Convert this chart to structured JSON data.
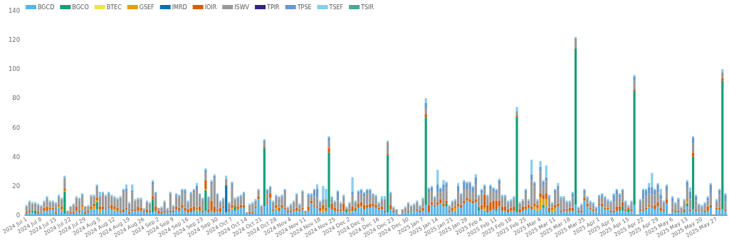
{
  "chart_data": {
    "type": "bar",
    "stacked": true,
    "legend": "top left",
    "grid": false,
    "ylim": [
      0,
      140
    ],
    "yticks": [
      0,
      20,
      40,
      60,
      80,
      100,
      120,
      140
    ],
    "categories": [
      "2024 Jul 1",
      null,
      null,
      null,
      null,
      "2024 Jul 8",
      null,
      null,
      null,
      null,
      "2024 Jul 15",
      null,
      null,
      null,
      null,
      "2024 Jul 22",
      null,
      null,
      null,
      null,
      "2024 Jul 29",
      null,
      null,
      null,
      null,
      "2024 Aug 5",
      null,
      null,
      null,
      null,
      "2024 Aug 12",
      null,
      null,
      null,
      null,
      "2024 Aug 19",
      null,
      null,
      null,
      null,
      "2024 Aug 26",
      null,
      null,
      null,
      null,
      "2024 Sep 2",
      null,
      null,
      null,
      null,
      "2024 Sep 9",
      null,
      null,
      null,
      null,
      "2024 Sep 16",
      null,
      null,
      null,
      null,
      "2024 Sep 23",
      null,
      null,
      null,
      null,
      "2024 Sep 30",
      null,
      null,
      null,
      null,
      "2024 Oct 7",
      null,
      null,
      null,
      null,
      "2024 Oct 14",
      null,
      null,
      null,
      null,
      "2024 Oct 21",
      null,
      null,
      null,
      null,
      "2024 Oct 28",
      null,
      null,
      null,
      null,
      "2024 Nov 4",
      null,
      null,
      null,
      null,
      "2024 Nov 11",
      null,
      null,
      null,
      null,
      "2024 Nov 18",
      null,
      null,
      null,
      null,
      "2024 Nov 25",
      null,
      null,
      null,
      null,
      "2024 Dec 2",
      null,
      null,
      null,
      null,
      "2024 Dec 9",
      null,
      null,
      null,
      null,
      "2024 Dec 16",
      null,
      null,
      null,
      null,
      "2024 Dec 23",
      null,
      null,
      null,
      null,
      "2024 Dec 30",
      null,
      null,
      null,
      null,
      "2025 Jan 7",
      null,
      null,
      null,
      null,
      "2025 Jan 14",
      null,
      null,
      null,
      null,
      "2025 Jan 21",
      null,
      null,
      null,
      null,
      "2025 Jan 28",
      null,
      null,
      null,
      null,
      "2025 Feb 4",
      null,
      null,
      null,
      null,
      "2025 Feb 11",
      null,
      null,
      null,
      null,
      "2025 Feb 18",
      null,
      null,
      null,
      null,
      "2025 Feb 25",
      null,
      null,
      null,
      null,
      "2025 Mar 4",
      null,
      null,
      null,
      null,
      "2025 Mar 11",
      null,
      null,
      null,
      null,
      "2025 Mar 18",
      null,
      null,
      null,
      null,
      "2025 Mar 25",
      null,
      null,
      null,
      null,
      "2025 Apr 1",
      null,
      null,
      null,
      null,
      "2025 Apr 8",
      null,
      null,
      null,
      null,
      "2025 Apr 15",
      null,
      null,
      null,
      null,
      "2025 Apr 22",
      null,
      null,
      null,
      null,
      "2025 Apr 29",
      null,
      null,
      null,
      null,
      "2025 May 6",
      null,
      null,
      null,
      null,
      "2025 May 13",
      null,
      null,
      null,
      null,
      "2025 May 20",
      null,
      null,
      null,
      null,
      "2025 May 27",
      null,
      null,
      null
    ],
    "series": [
      {
        "name": "BGCD",
        "color": "#56b4e9",
        "values": [
          1,
          2,
          2,
          1,
          1,
          1,
          3,
          3,
          4,
          4,
          1,
          5,
          3,
          1,
          1,
          1,
          1,
          3,
          2,
          4,
          1,
          2,
          4,
          4,
          4,
          2,
          4,
          3,
          5,
          4,
          3,
          3,
          2,
          2,
          4,
          1,
          3,
          3,
          3,
          3,
          1,
          2,
          2,
          2,
          3,
          1,
          1,
          2,
          1,
          2,
          2,
          4,
          3,
          5,
          3,
          2,
          2,
          3,
          3,
          3,
          2,
          3,
          2,
          3,
          2,
          3,
          2,
          5,
          2,
          3,
          4,
          3,
          4,
          5,
          5,
          1,
          1,
          1,
          5,
          11,
          1,
          6,
          8,
          11,
          3,
          4,
          3,
          5,
          4,
          2,
          2,
          3,
          3,
          3,
          4,
          1,
          3,
          8,
          6,
          5,
          2,
          2,
          3,
          5,
          4,
          3,
          3,
          3,
          3,
          2,
          2,
          3,
          3,
          5,
          5,
          4,
          5,
          5,
          6,
          5,
          4,
          4,
          2,
          2,
          4,
          2,
          1,
          0,
          1,
          2,
          2,
          2,
          2,
          3,
          2,
          3,
          7,
          2,
          7,
          6,
          7,
          8,
          6,
          6,
          2,
          3,
          3,
          6,
          5,
          8,
          10,
          9,
          8,
          9,
          3,
          4,
          3,
          2,
          3,
          4,
          3,
          6,
          3,
          3,
          2,
          3,
          3,
          2,
          2,
          3,
          4,
          5,
          4,
          4,
          3,
          4,
          5,
          6,
          2,
          2,
          3,
          6,
          2,
          3,
          3,
          3,
          3,
          7,
          2,
          2,
          10,
          6,
          4,
          3,
          2,
          7,
          6,
          4,
          4,
          2,
          2,
          3,
          3,
          3,
          3,
          2,
          3,
          7,
          0,
          3,
          3,
          4,
          5,
          5,
          4,
          6,
          3,
          3,
          8,
          1,
          3,
          2,
          2,
          1,
          2,
          6,
          3,
          4,
          3,
          2,
          2,
          2,
          3,
          5,
          0,
          4,
          4,
          4,
          3
        ]
      },
      {
        "name": "BGCO",
        "color": "#169f77",
        "values": [
          0,
          0,
          1,
          2,
          0,
          0,
          0,
          0,
          0,
          0,
          0,
          0,
          0,
          15,
          0,
          0,
          0,
          0,
          0,
          0,
          0,
          0,
          0,
          0,
          5,
          0,
          0,
          0,
          0,
          0,
          0,
          0,
          0,
          0,
          0,
          0,
          0,
          0,
          0,
          0,
          0,
          0,
          0,
          9,
          0,
          0,
          0,
          0,
          0,
          0,
          0,
          0,
          0,
          0,
          0,
          0,
          0,
          1,
          0,
          0,
          0,
          14,
          0,
          0,
          0,
          0,
          0,
          0,
          0,
          0,
          0,
          3,
          0,
          0,
          0,
          0,
          0,
          0,
          0,
          0,
          0,
          40,
          0,
          0,
          0,
          0,
          0,
          0,
          0,
          0,
          0,
          0,
          0,
          0,
          0,
          0,
          0,
          0,
          0,
          0,
          0,
          0,
          0,
          38,
          0,
          0,
          0,
          0,
          0,
          2,
          0,
          0,
          1,
          0,
          0,
          0,
          0,
          0,
          0,
          0,
          0,
          0,
          0,
          39,
          0,
          0,
          0,
          0,
          0,
          0,
          0,
          0,
          0,
          0,
          1,
          0,
          60,
          0,
          0,
          0,
          0,
          0,
          0,
          2,
          0,
          0,
          0,
          0,
          0,
          0,
          0,
          0,
          0,
          0,
          2,
          0,
          0,
          1,
          0,
          0,
          1,
          0,
          0,
          0,
          0,
          0,
          0,
          65,
          0,
          0,
          0,
          0,
          0,
          0,
          0,
          0,
          2,
          0,
          1,
          0,
          0,
          0,
          0,
          0,
          0,
          0,
          0,
          107,
          0,
          0,
          0,
          0,
          0,
          0,
          0,
          0,
          0,
          0,
          0,
          0,
          0,
          0,
          1,
          3,
          0,
          2,
          0,
          78,
          0,
          0,
          0,
          0,
          0,
          0,
          0,
          0,
          0,
          0,
          0,
          0,
          0,
          0,
          0,
          0,
          1,
          2,
          0,
          36,
          0,
          0,
          0,
          0,
          0,
          0,
          0,
          0,
          0,
          88,
          0
        ]
      },
      {
        "name": "BTEC",
        "color": "#f0e442",
        "values": [
          0,
          0,
          0,
          0,
          0,
          0,
          0,
          0,
          0,
          0,
          0,
          0,
          0,
          0,
          0,
          0,
          0,
          0,
          0,
          0,
          0,
          0,
          0,
          0,
          0,
          0,
          0,
          0,
          0,
          0,
          0,
          0,
          0,
          0,
          0,
          0,
          0,
          0,
          0,
          0,
          0,
          0,
          0,
          0,
          0,
          0,
          0,
          0,
          0,
          0,
          0,
          0,
          0,
          0,
          0,
          0,
          0,
          0,
          0,
          0,
          0,
          0,
          0,
          0,
          0,
          0,
          0,
          0,
          0,
          0,
          0,
          0,
          0,
          0,
          0,
          0,
          0,
          0,
          0,
          0,
          0,
          0,
          0,
          0,
          0,
          0,
          0,
          0,
          0,
          0,
          0,
          0,
          0,
          0,
          0,
          0,
          0,
          0,
          0,
          0,
          0,
          0,
          0,
          0,
          0,
          0,
          0,
          0,
          0,
          0,
          0,
          0,
          0,
          0,
          0,
          0,
          0,
          0,
          0,
          0,
          0,
          0,
          0,
          0,
          0,
          0,
          0,
          0,
          0,
          0,
          0,
          0,
          0,
          0,
          0,
          0,
          0,
          0,
          0,
          0,
          0,
          0,
          0,
          0,
          0,
          0,
          0,
          0,
          0,
          0,
          0,
          0,
          0,
          0,
          0,
          0,
          0,
          0,
          0,
          0,
          0,
          0,
          0,
          0,
          0,
          0,
          0,
          0,
          0,
          0,
          0,
          0,
          0,
          0,
          0,
          0,
          0,
          0,
          0,
          0,
          0,
          0,
          0,
          0,
          0,
          0,
          0,
          0,
          0,
          0,
          0,
          0,
          0,
          0,
          0,
          0,
          0,
          0,
          0,
          0,
          0,
          0,
          0,
          0,
          0,
          0,
          0,
          0,
          0,
          0,
          0,
          0,
          0,
          0,
          0,
          0,
          0,
          0,
          0,
          0,
          0,
          0,
          0,
          0,
          0,
          0,
          0,
          0,
          0,
          0,
          0,
          0,
          0,
          0,
          0,
          0,
          0,
          0,
          0
        ]
      },
      {
        "name": "GSEF",
        "color": "#e69f00",
        "values": [
          0,
          0,
          0,
          0,
          0,
          0,
          0,
          0,
          0,
          0,
          0,
          1,
          1,
          1,
          0,
          0,
          0,
          0,
          0,
          2,
          0,
          0,
          0,
          2,
          1,
          2,
          0,
          0,
          0,
          0,
          1,
          0,
          0,
          0,
          0,
          0,
          0,
          0,
          0,
          0,
          0,
          0,
          0,
          0,
          0,
          0,
          0,
          0,
          0,
          0,
          0,
          0,
          0,
          0,
          0,
          0,
          0,
          0,
          1,
          0,
          0,
          1,
          0,
          0,
          0,
          0,
          0,
          0,
          0,
          0,
          1,
          0,
          0,
          0,
          0,
          0,
          0,
          0,
          0,
          0,
          0,
          0,
          0,
          1,
          0,
          1,
          0,
          0,
          0,
          0,
          0,
          0,
          0,
          0,
          0,
          0,
          0,
          0,
          0,
          0,
          1,
          2,
          0,
          0,
          0,
          0,
          0,
          0,
          0,
          0,
          1,
          0,
          0,
          0,
          1,
          0,
          0,
          0,
          0,
          0,
          0,
          0,
          0,
          0,
          0,
          0,
          0,
          0,
          0,
          0,
          0,
          0,
          0,
          0,
          0,
          0,
          0,
          0,
          0,
          0,
          0,
          0,
          0,
          0,
          0,
          0,
          2,
          0,
          0,
          0,
          0,
          0,
          0,
          0,
          0,
          0,
          2,
          0,
          0,
          0,
          0,
          0,
          0,
          0,
          0,
          0,
          0,
          0,
          0,
          0,
          0,
          0,
          0,
          2,
          2,
          8,
          4,
          5,
          0,
          2,
          2,
          0,
          0,
          0,
          0,
          0,
          0,
          0,
          0,
          0,
          0,
          0,
          0,
          0,
          0,
          0,
          0,
          0,
          0,
          0,
          0,
          0,
          0,
          0,
          0,
          0,
          0,
          0,
          0,
          0,
          0,
          0,
          1,
          0,
          0,
          0,
          0,
          0,
          0,
          0,
          0,
          0,
          0,
          0,
          0,
          2,
          0,
          0,
          0,
          0,
          0,
          0,
          0,
          0,
          0,
          0,
          0,
          0,
          0
        ]
      },
      {
        "name": "IMRD",
        "color": "#0072b2",
        "values": [
          0,
          0,
          0,
          0,
          0,
          0,
          0,
          0,
          0,
          0,
          0,
          0,
          0,
          0,
          0,
          0,
          0,
          0,
          0,
          0,
          0,
          0,
          0,
          0,
          0,
          0,
          0,
          0,
          0,
          0,
          0,
          0,
          0,
          0,
          0,
          0,
          0,
          0,
          0,
          0,
          0,
          0,
          0,
          0,
          0,
          0,
          0,
          0,
          0,
          0,
          0,
          0,
          0,
          0,
          0,
          0,
          0,
          0,
          0,
          0,
          0,
          0,
          0,
          0,
          0,
          0,
          0,
          0,
          18,
          0,
          0,
          0,
          0,
          0,
          0,
          0,
          0,
          0,
          0,
          0,
          0,
          0,
          0,
          0,
          0,
          0,
          0,
          0,
          0,
          0,
          0,
          0,
          0,
          0,
          0,
          0,
          0,
          0,
          0,
          0,
          0,
          0,
          0,
          0,
          0,
          0,
          0,
          0,
          0,
          0,
          0,
          0,
          0,
          0,
          0,
          0,
          0,
          0,
          0,
          0,
          0,
          0,
          0,
          0,
          0,
          0,
          0,
          0,
          0,
          0,
          0,
          0,
          0,
          0,
          0,
          0,
          0,
          0,
          0,
          0,
          0,
          0,
          0,
          0,
          0,
          0,
          0,
          0,
          0,
          0,
          0,
          0,
          0,
          0,
          0,
          0,
          0,
          0,
          0,
          0,
          0,
          0,
          0,
          0,
          0,
          0,
          0,
          0,
          0,
          0,
          0,
          0,
          0,
          0,
          0,
          0,
          0,
          0,
          0,
          0,
          0,
          0,
          0,
          0,
          0,
          0,
          0,
          0,
          0,
          0,
          0,
          0,
          0,
          0,
          0,
          0,
          0,
          0,
          0,
          0,
          0,
          0,
          0,
          0,
          0,
          0,
          0,
          0,
          0,
          0,
          0,
          0,
          0,
          0,
          0,
          0,
          0,
          0,
          0,
          0,
          0,
          0,
          0,
          0,
          0,
          0,
          0,
          0,
          0,
          0,
          0,
          0,
          0,
          0,
          0,
          0,
          0,
          0,
          0
        ]
      },
      {
        "name": "IOIR",
        "color": "#d55e00",
        "values": [
          1,
          1,
          0,
          0,
          1,
          0,
          2,
          3,
          1,
          1,
          1,
          1,
          2,
          1,
          0,
          1,
          1,
          3,
          1,
          1,
          1,
          1,
          2,
          2,
          2,
          2,
          2,
          0,
          1,
          3,
          2,
          2,
          1,
          2,
          1,
          1,
          1,
          1,
          3,
          2,
          0,
          2,
          1,
          2,
          3,
          2,
          1,
          1,
          0,
          1,
          1,
          2,
          2,
          2,
          2,
          2,
          3,
          2,
          1,
          3,
          1,
          6,
          2,
          7,
          4,
          1,
          3,
          1,
          1,
          1,
          2,
          1,
          2,
          2,
          2,
          0,
          1,
          1,
          1,
          2,
          0,
          1,
          1,
          3,
          1,
          2,
          2,
          2,
          1,
          1,
          1,
          1,
          2,
          1,
          1,
          0,
          3,
          2,
          1,
          1,
          2,
          3,
          2,
          3,
          4,
          2,
          1,
          1,
          5,
          0,
          1,
          3,
          1,
          3,
          3,
          3,
          2,
          3,
          2,
          2,
          1,
          2,
          1,
          1,
          3,
          1,
          0,
          0,
          0,
          0,
          1,
          0,
          0,
          1,
          0,
          2,
          2,
          5,
          2,
          1,
          2,
          3,
          2,
          2,
          1,
          2,
          1,
          2,
          2,
          2,
          2,
          2,
          2,
          2,
          1,
          3,
          9,
          4,
          6,
          6,
          6,
          4,
          3,
          3,
          2,
          2,
          3,
          1,
          2,
          3,
          2,
          2,
          2,
          2,
          2,
          3,
          3,
          4,
          2,
          1,
          2,
          2,
          1,
          1,
          1,
          2,
          2,
          1,
          1,
          1,
          2,
          2,
          1,
          1,
          0,
          1,
          2,
          1,
          1,
          1,
          1,
          3,
          2,
          3,
          1,
          1,
          1,
          1,
          0,
          1,
          1,
          1,
          1,
          1,
          3,
          3,
          2,
          1,
          3,
          0,
          1,
          1,
          1,
          0,
          1,
          1,
          1,
          3,
          1,
          0,
          0,
          1,
          3,
          2,
          0,
          1,
          1,
          2,
          1
        ]
      },
      {
        "name": "ISWV",
        "color": "#999999",
        "values": [
          4,
          6,
          5,
          5,
          5,
          5,
          4,
          5,
          4,
          4,
          6,
          5,
          5,
          7,
          2,
          4,
          5,
          6,
          7,
          6,
          4,
          3,
          7,
          5,
          7,
          7,
          8,
          10,
          8,
          6,
          6,
          6,
          9,
          12,
          12,
          6,
          12,
          6,
          5,
          6,
          3,
          5,
          5,
          8,
          8,
          2,
          3,
          6,
          3,
          12,
          3,
          7,
          7,
          9,
          10,
          4,
          9,
          10,
          13,
          7,
          7,
          5,
          7,
          11,
          19,
          9,
          3,
          4,
          4,
          4,
          13,
          4,
          5,
          5,
          7,
          1,
          5,
          6,
          4,
          4,
          5,
          3,
          6,
          3,
          5,
          6,
          6,
          5,
          11,
          2,
          4,
          5,
          8,
          3,
          10,
          2,
          6,
          3,
          6,
          6,
          3,
          4,
          6,
          5,
          3,
          4,
          6,
          4,
          4,
          1,
          4,
          8,
          4,
          6,
          6,
          6,
          8,
          7,
          5,
          5,
          3,
          4,
          8,
          8,
          7,
          2,
          3,
          0,
          3,
          3,
          5,
          4,
          5,
          5,
          3,
          5,
          4,
          9,
          7,
          4,
          7,
          5,
          8,
          9,
          3,
          4,
          4,
          8,
          6,
          8,
          6,
          7,
          6,
          10,
          6,
          8,
          4,
          5,
          9,
          6,
          5,
          11,
          6,
          6,
          4,
          4,
          5,
          3,
          4,
          4,
          9,
          3,
          18,
          12,
          3,
          15,
          6,
          8,
          7,
          3,
          8,
          10,
          8,
          7,
          4,
          3,
          7,
          6,
          2,
          4,
          3,
          3,
          3,
          3,
          3,
          4,
          5,
          6,
          4,
          5,
          6,
          8,
          6,
          7,
          4,
          1,
          4,
          6,
          0,
          5,
          7,
          8,
          8,
          8,
          7,
          7,
          6,
          4,
          6,
          0,
          5,
          4,
          6,
          4,
          5,
          8,
          7,
          6,
          6,
          4,
          3,
          4,
          4,
          8,
          0,
          4,
          9,
          4,
          5
        ]
      },
      {
        "name": "TPIR",
        "color": "#332288",
        "values": [
          0,
          0,
          0,
          0,
          0,
          0,
          0,
          0,
          0,
          0,
          0,
          0,
          0,
          0,
          0,
          0,
          0,
          0,
          0,
          0,
          0,
          0,
          0,
          0,
          0,
          0,
          0,
          0,
          0,
          0,
          0,
          0,
          0,
          0,
          0,
          0,
          0,
          0,
          0,
          0,
          0,
          0,
          0,
          0,
          0,
          0,
          0,
          0,
          0,
          0,
          0,
          0,
          0,
          0,
          0,
          0,
          0,
          0,
          0,
          0,
          0,
          0,
          0,
          0,
          0,
          0,
          0,
          0,
          0,
          0,
          0,
          0,
          0,
          0,
          0,
          0,
          0,
          0,
          0,
          0,
          0,
          0,
          0,
          0,
          0,
          0,
          0,
          0,
          0,
          0,
          0,
          0,
          0,
          0,
          0,
          0,
          0,
          0,
          0,
          0,
          0,
          0,
          0,
          0,
          0,
          0,
          0,
          0,
          0,
          0,
          0,
          0,
          0,
          0,
          0,
          0,
          0,
          0,
          0,
          0,
          0,
          0,
          0,
          0,
          0,
          0,
          0,
          0,
          0,
          0,
          0,
          0,
          0,
          0,
          0,
          0,
          0,
          0,
          0,
          0,
          0,
          0,
          0,
          0,
          0,
          0,
          0,
          0,
          0,
          0,
          0,
          0,
          0,
          0,
          0,
          0,
          0,
          0,
          0,
          0,
          0,
          0,
          0,
          0,
          0,
          0,
          0,
          0,
          0,
          0,
          0,
          0,
          0,
          0,
          0,
          0,
          0,
          0,
          0,
          0,
          0,
          0,
          0,
          0,
          0,
          0,
          0,
          0,
          0,
          0,
          0,
          0,
          0,
          0,
          0,
          0,
          0,
          0,
          0,
          0,
          0,
          0,
          0,
          0,
          0,
          0,
          0,
          0,
          0,
          0,
          0,
          0,
          0,
          0,
          0,
          0,
          0,
          0,
          0,
          0,
          0,
          0,
          0,
          0,
          0,
          0,
          0,
          0,
          0,
          0,
          0,
          0,
          0,
          0,
          0,
          0,
          0,
          0,
          0
        ]
      },
      {
        "name": "TPSE",
        "color": "#6699cc",
        "values": [
          0,
          0,
          0,
          0,
          0,
          0,
          0,
          1,
          0,
          0,
          0,
          1,
          0,
          1,
          0,
          0,
          0,
          0,
          1,
          1,
          0,
          0,
          0,
          0,
          1,
          0,
          1,
          0,
          1,
          0,
          0,
          0,
          0,
          1,
          1,
          0,
          1,
          0,
          0,
          0,
          0,
          0,
          0,
          2,
          1,
          0,
          0,
          0,
          0,
          0,
          0,
          1,
          1,
          1,
          2,
          1,
          1,
          1,
          2,
          1,
          1,
          2,
          1,
          2,
          2,
          1,
          1,
          1,
          0,
          0,
          2,
          0,
          1,
          1,
          1,
          0,
          0,
          0,
          0,
          0,
          0,
          1,
          2,
          1,
          0,
          0,
          1,
          1,
          1,
          0,
          0,
          0,
          1,
          0,
          1,
          0,
          2,
          1,
          4,
          6,
          1,
          0,
          0,
          2,
          1,
          0,
          6,
          0,
          1,
          0,
          0,
          2,
          0,
          2,
          2,
          2,
          2,
          2,
          1,
          1,
          0,
          1,
          0,
          0,
          1,
          0,
          0,
          0,
          0,
          0,
          0,
          0,
          0,
          0,
          0,
          1,
          4,
          2,
          3,
          1,
          5,
          2,
          5,
          3,
          0,
          0,
          0,
          4,
          1,
          5,
          4,
          4,
          3,
          5,
          1,
          2,
          2,
          1,
          2,
          2,
          2,
          3,
          1,
          1,
          1,
          1,
          1,
          0,
          0,
          0,
          2,
          0,
          4,
          2,
          0,
          3,
          3,
          3,
          1,
          0,
          2,
          2,
          1,
          1,
          1,
          1,
          3,
          0,
          0,
          0,
          2,
          1,
          1,
          1,
          0,
          1,
          1,
          1,
          1,
          1,
          5,
          3,
          2,
          1,
          1,
          0,
          1,
          3,
          0,
          1,
          6,
          4,
          4,
          5,
          3,
          5,
          3,
          1,
          3,
          0,
          3,
          1,
          2,
          0,
          1,
          4,
          5,
          4,
          3,
          1,
          1,
          1,
          2,
          6,
          0,
          1,
          3,
          0,
          5
        ]
      },
      {
        "name": "TSEF",
        "color": "#88ccee",
        "values": [
          1,
          1,
          1,
          1,
          1,
          1,
          1,
          1,
          1,
          1,
          1,
          1,
          1,
          1,
          0,
          0,
          1,
          1,
          1,
          1,
          0,
          1,
          1,
          1,
          1,
          3,
          1,
          1,
          1,
          1,
          1,
          1,
          1,
          1,
          3,
          1,
          4,
          1,
          1,
          1,
          1,
          1,
          1,
          1,
          1,
          0,
          1,
          1,
          1,
          1,
          1,
          1,
          1,
          1,
          1,
          1,
          1,
          1,
          2,
          1,
          1,
          1,
          1,
          1,
          1,
          1,
          1,
          1,
          2,
          1,
          1,
          1,
          1,
          1,
          1,
          0,
          1,
          1,
          1,
          1,
          1,
          1,
          1,
          1,
          1,
          1,
          1,
          1,
          1,
          1,
          1,
          1,
          1,
          1,
          1,
          0,
          1,
          1,
          1,
          3,
          1,
          9,
          7,
          1,
          1,
          1,
          1,
          1,
          1,
          1,
          1,
          10,
          1,
          1,
          1,
          1,
          1,
          1,
          1,
          1,
          1,
          2,
          2,
          1,
          1,
          1,
          0,
          0,
          0,
          1,
          1,
          1,
          1,
          1,
          1,
          1,
          3,
          1,
          1,
          1,
          10,
          1,
          3,
          1,
          1,
          1,
          1,
          2,
          1,
          1,
          1,
          1,
          1,
          2,
          1,
          1,
          1,
          1,
          1,
          1,
          1,
          1,
          1,
          1,
          1,
          1,
          1,
          3,
          1,
          1,
          1,
          1,
          10,
          1,
          1,
          4,
          1,
          8,
          1,
          1,
          1,
          2,
          1,
          1,
          1,
          1,
          1,
          1,
          1,
          1,
          1,
          1,
          1,
          1,
          1,
          1,
          1,
          1,
          1,
          1,
          1,
          1,
          1,
          1,
          1,
          1,
          1,
          1,
          0,
          1,
          1,
          1,
          3,
          10,
          1,
          1,
          4,
          1,
          1,
          0,
          1,
          1,
          1,
          1,
          1,
          1,
          3,
          1,
          1,
          1,
          1,
          1,
          1,
          1,
          0,
          1,
          1,
          2,
          1
        ]
      },
      {
        "name": "TSIR",
        "color": "#44aa99",
        "values": [
          0,
          0,
          0,
          0,
          0,
          0,
          0,
          0,
          0,
          0,
          0,
          0,
          0,
          0,
          0,
          0,
          0,
          0,
          0,
          0,
          0,
          0,
          0,
          0,
          0,
          0,
          0,
          0,
          0,
          0,
          0,
          0,
          0,
          0,
          0,
          0,
          0,
          0,
          0,
          0,
          0,
          0,
          0,
          0,
          0,
          0,
          0,
          0,
          0,
          0,
          0,
          0,
          0,
          0,
          0,
          0,
          0,
          0,
          0,
          0,
          0,
          0,
          0,
          0,
          0,
          0,
          0,
          0,
          0,
          0,
          0,
          0,
          0,
          0,
          0,
          0,
          0,
          0,
          0,
          0,
          0,
          0,
          0,
          0,
          0,
          0,
          0,
          0,
          0,
          0,
          0,
          0,
          0,
          0,
          0,
          0,
          0,
          0,
          0,
          0,
          0,
          0,
          0,
          0,
          0,
          0,
          0,
          0,
          0,
          0,
          0,
          0,
          0,
          0,
          0,
          0,
          0,
          0,
          0,
          0,
          0,
          0,
          0,
          0,
          0,
          0,
          0,
          0,
          0,
          0,
          0,
          0,
          0,
          0,
          0,
          0,
          0,
          0,
          0,
          0,
          0,
          0,
          0,
          0,
          0,
          0,
          0,
          0,
          0,
          0,
          0,
          0,
          0,
          0,
          0,
          0,
          0,
          0,
          0,
          0,
          0,
          0,
          0,
          0,
          0,
          0,
          0,
          0,
          0,
          0,
          0,
          0,
          0,
          0,
          0,
          0,
          0,
          0,
          0,
          0,
          0,
          0,
          0,
          0,
          0,
          0,
          0,
          0,
          0,
          0,
          0,
          0,
          0,
          0,
          0,
          0,
          0,
          0,
          0,
          0,
          0,
          0,
          0,
          0,
          0,
          0,
          0,
          0,
          0,
          0,
          0,
          0,
          0,
          0,
          0,
          0,
          0,
          0,
          0,
          0,
          0,
          0,
          0,
          0,
          0,
          0,
          0,
          0,
          0,
          0,
          0,
          0,
          0,
          0,
          0,
          0,
          0,
          0,
          0
        ]
      }
    ]
  }
}
